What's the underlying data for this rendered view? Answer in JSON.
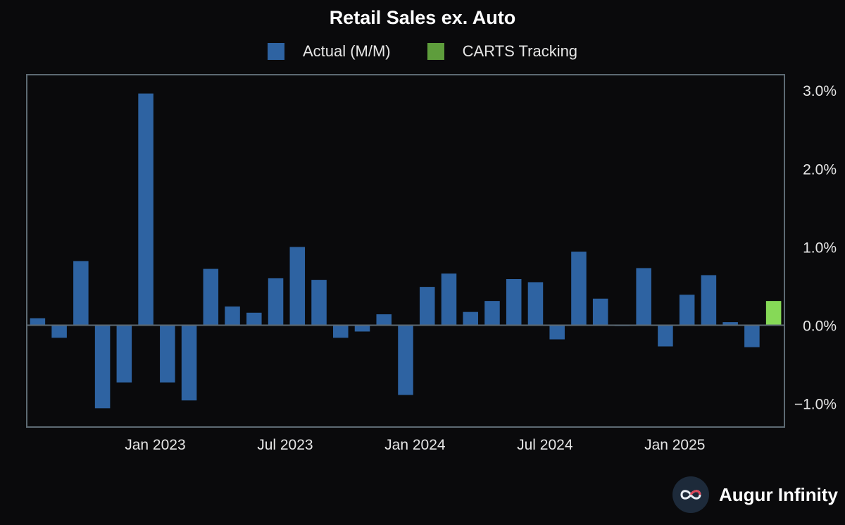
{
  "brand": {
    "name": "Augur Infinity"
  },
  "colors": {
    "background": "#0a0a0c",
    "actual": "#2e63a2",
    "carts": "#5e9d3c",
    "carts_bar": "#86d957",
    "axis": "#5d6a73"
  },
  "chart_data": {
    "type": "bar",
    "title": "Retail Sales ex. Auto",
    "legend": [
      "Actual (M/M)",
      "CARTS Tracking"
    ],
    "legend_position": "top-center",
    "xlabel": "",
    "ylabel": "",
    "ylim": [
      -1.3,
      3.2
    ],
    "yticks": [
      {
        "value": 3.0,
        "label": "3.0%"
      },
      {
        "value": 2.0,
        "label": "2.0%"
      },
      {
        "value": 1.0,
        "label": "1.0%"
      },
      {
        "value": 0.0,
        "label": "0.0%"
      },
      {
        "value": -1.0,
        "label": "−1.0%"
      }
    ],
    "xticks": [
      {
        "index": 5.5,
        "label": "Jan 2023"
      },
      {
        "index": 11.5,
        "label": "Jul 2023"
      },
      {
        "index": 17.5,
        "label": "Jan 2024"
      },
      {
        "index": 23.5,
        "label": "Jul 2024"
      },
      {
        "index": 29.5,
        "label": "Jan 2025"
      }
    ],
    "x_slots": 35,
    "series": [
      {
        "name": "Actual (M/M)",
        "values": [
          0.09,
          -0.16,
          0.82,
          -1.06,
          -0.73,
          2.96,
          -0.73,
          -0.96,
          0.72,
          0.24,
          0.16,
          0.6,
          1.0,
          0.58,
          -0.16,
          -0.08,
          0.14,
          -0.89,
          0.49,
          0.66,
          0.17,
          0.31,
          0.59,
          0.55,
          -0.18,
          0.94,
          0.34,
          -0.01,
          0.73,
          -0.27,
          0.39,
          0.64,
          0.04,
          -0.28
        ]
      },
      {
        "name": "CARTS Tracking",
        "start_index": 34,
        "values": [
          0.31
        ]
      }
    ]
  }
}
